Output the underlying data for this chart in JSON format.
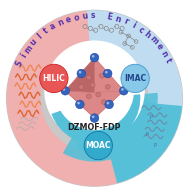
{
  "title": "Simultaneous Enrichment",
  "center_label": "DZMOF-FDP",
  "labels": [
    "HILIC",
    "IMAC",
    "MOAC"
  ],
  "outer_circle_color": "#c8c8c8",
  "bg_color": "#ffffff",
  "pink_region_color": "#f0b0b0",
  "blue_region_color": "#c0dcf0",
  "teal_region_color": "#55c0d8",
  "title_color": "#5533aa",
  "hilic_color": "#e85555",
  "imac_color": "#88c8e8",
  "moac_color": "#33aacc",
  "crystal_face_light": "#eeaaaa",
  "crystal_face_mid": "#dd8888",
  "crystal_face_dark": "#bb6666",
  "sphere_color": "#3366bb",
  "figsize": [
    1.89,
    1.89
  ],
  "dpi": 100
}
